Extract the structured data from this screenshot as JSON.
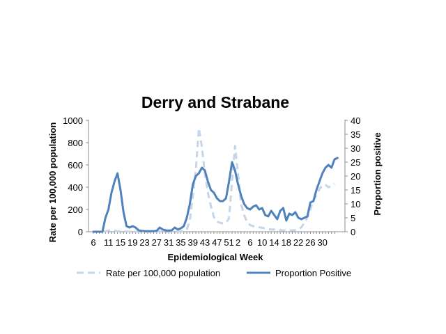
{
  "chart_data": {
    "type": "line",
    "title": "Derry and Strabane",
    "xlabel": "Epidemiological Week",
    "ylabel_left": "Rate per 100,000 population",
    "ylabel_right": "Proportion positive",
    "ylim_left": [
      0,
      1000
    ],
    "ylim_right": [
      0,
      40
    ],
    "yticks_left": [
      "0",
      "200",
      "400",
      "600",
      "800",
      "1000"
    ],
    "yticks_right": [
      "0",
      "5",
      "10",
      "15",
      "20",
      "25",
      "30",
      "35",
      "40"
    ],
    "x_tick_labels": [
      "6",
      "11",
      "15",
      "19",
      "23",
      "27",
      "31",
      "35",
      "39",
      "43",
      "47",
      "51",
      "2",
      "6",
      "10",
      "14",
      "18",
      "22",
      "26",
      "30"
    ],
    "x_tick_index": [
      0,
      5,
      9,
      13,
      17,
      21,
      25,
      29,
      33,
      37,
      41,
      45,
      48,
      52,
      56,
      60,
      64,
      68,
      72,
      76
    ],
    "grid": false,
    "legend_position": "bottom",
    "series": [
      {
        "name": "Rate per 100,000 population",
        "axis": "left",
        "style": "dashed",
        "color": "#c5d5ea",
        "values": [
          0,
          0,
          0,
          0,
          5,
          10,
          15,
          10,
          5,
          3,
          2,
          2,
          1,
          1,
          0,
          0,
          0,
          0,
          0,
          0,
          0,
          0,
          2,
          2,
          1,
          1,
          1,
          1,
          2,
          3,
          5,
          20,
          100,
          320,
          560,
          930,
          760,
          520,
          350,
          230,
          130,
          90,
          80,
          75,
          80,
          120,
          450,
          770,
          520,
          250,
          150,
          90,
          60,
          50,
          45,
          40,
          35,
          30,
          25,
          20,
          20,
          18,
          15,
          12,
          10,
          10,
          12,
          15,
          20,
          40,
          80,
          130,
          200,
          280,
          330,
          380,
          420,
          420,
          400,
          410,
          430
        ]
      },
      {
        "name": "Proportion Positive",
        "axis": "right",
        "style": "solid",
        "color": "#4f81bd",
        "values": [
          0,
          0,
          0,
          0,
          5,
          8,
          14,
          18,
          21,
          15,
          7,
          2,
          1.5,
          2,
          1.5,
          0.5,
          0.3,
          0.2,
          0.2,
          0.2,
          0.2,
          0.3,
          1.5,
          0.8,
          0.5,
          0.4,
          0.5,
          1.5,
          0.8,
          1.2,
          2,
          5,
          10,
          17,
          20,
          21,
          23,
          22,
          18,
          15,
          14,
          12,
          11,
          11,
          12,
          18,
          25,
          22,
          17,
          13,
          10,
          8.5,
          8,
          9,
          9.5,
          8,
          8.5,
          6,
          5.5,
          7.5,
          6,
          4.5,
          7.5,
          8.5,
          4,
          6.5,
          6,
          7,
          5,
          4.5,
          5,
          5.5,
          10.5,
          11,
          15,
          18,
          21,
          23,
          24,
          23,
          26,
          26.5
        ]
      }
    ]
  }
}
